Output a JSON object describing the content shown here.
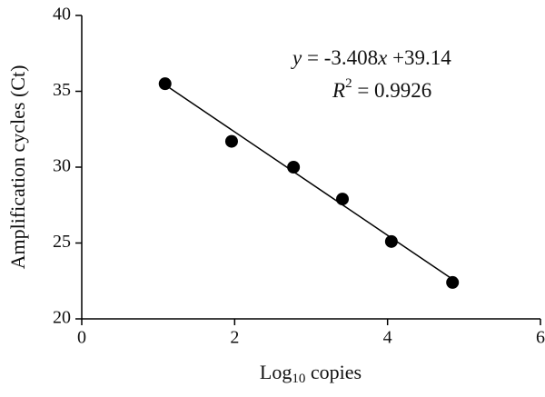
{
  "chart_data": {
    "type": "scatter",
    "x_label": {
      "text": "Log",
      "sub": "10",
      "rest": " copies"
    },
    "y_label": "Amplification cycles (Ct)",
    "x": [
      1.09,
      1.96,
      2.77,
      3.41,
      4.05,
      4.85
    ],
    "values": [
      35.5,
      31.7,
      30.0,
      27.9,
      25.1,
      22.4
    ],
    "color": "#000000",
    "fit": {
      "slope": -3.408,
      "intercept": 39.14
    },
    "equation": [
      "y",
      " = -3.408",
      "x",
      " +39.14"
    ],
    "r_squared": {
      "base": "R",
      "sup": "2",
      "rest": " = 0.9926"
    },
    "xlim": [
      0,
      6
    ],
    "xticks": [
      0,
      2,
      4,
      6
    ],
    "ylim": [
      20,
      40
    ],
    "yticks": [
      20,
      25,
      30,
      35,
      40
    ],
    "grid": false
  }
}
